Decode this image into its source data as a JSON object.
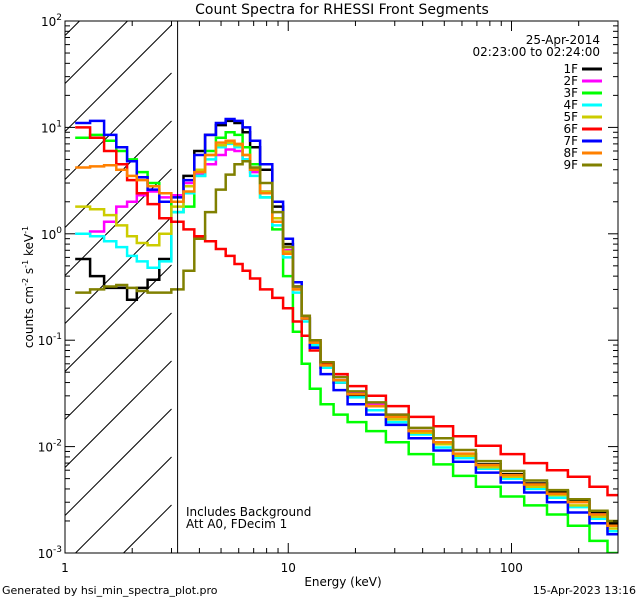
{
  "chart_data": {
    "type": "line",
    "title": "Count Spectra for RHESSI Front Segments",
    "date": "25-Apr-2014",
    "time_range": "02:23:00 to 02:24:00",
    "xlabel": "Energy (keV)",
    "ylabel": "counts cm-2 s-1 keV-1",
    "xscale": "log",
    "yscale": "log",
    "xlim": [
      1,
      300
    ],
    "ylim": [
      0.001,
      100
    ],
    "x_ticks": [
      {
        "value": 1,
        "label": "1"
      },
      {
        "value": 10,
        "label": "10"
      },
      {
        "value": 100,
        "label": "100"
      }
    ],
    "y_ticks": [
      {
        "value": 100,
        "mant": "10",
        "exp": "2"
      },
      {
        "value": 10,
        "mant": "10",
        "exp": "1"
      },
      {
        "value": 1,
        "mant": "10",
        "exp": "0"
      },
      {
        "value": 0.1,
        "mant": "10",
        "exp": "-1"
      },
      {
        "value": 0.01,
        "mant": "10",
        "exp": "-2"
      },
      {
        "value": 0.001,
        "mant": "10",
        "exp": "-3"
      }
    ],
    "shaded_region": {
      "from": 1,
      "to": 3,
      "note": "below-threshold energies hatched"
    },
    "annotations": [
      "Includes Background",
      "Att A0, FDecim 1"
    ],
    "series": [
      {
        "name": "1F",
        "color": "#000000",
        "energies": [
          1.2,
          1.4,
          1.6,
          1.8,
          2.0,
          2.2,
          2.5,
          2.8,
          3.2,
          3.6,
          4.0,
          4.5,
          5.0,
          5.5,
          6.0,
          6.5,
          7.0,
          8.0,
          9.0,
          10,
          11,
          12,
          13,
          15,
          17,
          20,
          25,
          30,
          40,
          50,
          60,
          80,
          100,
          130,
          160,
          200,
          250,
          290
        ],
        "values": [
          0.58,
          0.4,
          0.31,
          0.31,
          0.24,
          0.31,
          0.37,
          0.58,
          2.0,
          3.5,
          6.0,
          8.5,
          10.5,
          11.5,
          11.0,
          9.0,
          6.5,
          4.0,
          1.8,
          0.8,
          0.32,
          0.16,
          0.09,
          0.055,
          0.04,
          0.03,
          0.024,
          0.019,
          0.014,
          0.011,
          0.0085,
          0.0068,
          0.0055,
          0.0045,
          0.0038,
          0.0031,
          0.0024,
          0.0019
        ]
      },
      {
        "name": "2F",
        "color": "#ff00ff",
        "energies": [
          1.2,
          1.4,
          1.6,
          1.8,
          2.0,
          2.2,
          2.5,
          2.8,
          3.2,
          3.6,
          4.0,
          4.5,
          5.0,
          5.5,
          6.0,
          6.5,
          7.0,
          8.0,
          9.0,
          10,
          11,
          12,
          13,
          15,
          17,
          20,
          25,
          30,
          40,
          50,
          60,
          80,
          100,
          130,
          160,
          200,
          250,
          290
        ],
        "values": [
          1.0,
          1.05,
          1.3,
          1.8,
          2.0,
          2.3,
          2.5,
          2.2,
          2.3,
          3.0,
          3.6,
          4.5,
          5.5,
          6.2,
          6.0,
          5.0,
          3.8,
          2.5,
          1.4,
          0.7,
          0.32,
          0.17,
          0.1,
          0.06,
          0.045,
          0.032,
          0.025,
          0.02,
          0.014,
          0.011,
          0.0085,
          0.0066,
          0.0053,
          0.0043,
          0.0036,
          0.003,
          0.0023,
          0.0018
        ]
      },
      {
        "name": "3F",
        "color": "#00ff00",
        "energies": [
          1.2,
          1.4,
          1.6,
          1.8,
          2.0,
          2.2,
          2.5,
          2.8,
          3.2,
          3.6,
          4.0,
          4.5,
          5.0,
          5.5,
          6.0,
          6.5,
          7.0,
          8.0,
          9.0,
          10,
          11,
          12,
          13,
          15,
          17,
          20,
          25,
          30,
          40,
          50,
          60,
          80,
          100,
          130,
          160,
          200,
          250,
          290
        ],
        "values": [
          8.0,
          8.5,
          7.5,
          6.0,
          5.0,
          3.8,
          3.0,
          2.4,
          1.6,
          1.8,
          3.5,
          6.0,
          8.0,
          9.0,
          8.5,
          6.5,
          4.5,
          2.2,
          1.1,
          0.4,
          0.12,
          0.06,
          0.035,
          0.025,
          0.02,
          0.017,
          0.014,
          0.011,
          0.0085,
          0.0068,
          0.0053,
          0.0042,
          0.0034,
          0.0028,
          0.0023,
          0.0018,
          0.0013,
          0.001
        ]
      },
      {
        "name": "4F",
        "color": "#00ffff",
        "energies": [
          1.2,
          1.4,
          1.6,
          1.8,
          2.0,
          2.2,
          2.5,
          2.8,
          3.2,
          3.6,
          4.0,
          4.5,
          5.0,
          5.5,
          6.0,
          6.5,
          7.0,
          8.0,
          9.0,
          10,
          11,
          12,
          13,
          15,
          17,
          20,
          25,
          30,
          40,
          50,
          60,
          80,
          100,
          130,
          160,
          200,
          250,
          290
        ],
        "values": [
          1.0,
          0.95,
          0.85,
          0.75,
          0.62,
          0.55,
          0.48,
          0.55,
          1.6,
          2.4,
          3.5,
          5.0,
          6.5,
          7.0,
          6.5,
          5.0,
          3.5,
          2.2,
          1.2,
          0.6,
          0.28,
          0.15,
          0.09,
          0.055,
          0.04,
          0.029,
          0.022,
          0.017,
          0.013,
          0.0098,
          0.0078,
          0.0062,
          0.005,
          0.004,
          0.0033,
          0.0027,
          0.0021,
          0.0016
        ]
      },
      {
        "name": "5F",
        "color": "#cccc00",
        "energies": [
          1.2,
          1.4,
          1.6,
          1.8,
          2.0,
          2.2,
          2.5,
          2.8,
          3.2,
          3.6,
          4.0,
          4.5,
          5.0,
          5.5,
          6.0,
          6.5,
          7.0,
          8.0,
          9.0,
          10,
          11,
          12,
          13,
          15,
          17,
          20,
          25,
          30,
          40,
          50,
          60,
          80,
          100,
          130,
          160,
          200,
          250,
          290
        ],
        "values": [
          1.8,
          1.7,
          1.5,
          1.2,
          0.95,
          0.82,
          0.78,
          1.0,
          1.8,
          2.8,
          4.0,
          5.5,
          6.8,
          7.2,
          6.8,
          5.5,
          4.0,
          2.5,
          1.4,
          0.68,
          0.3,
          0.16,
          0.095,
          0.058,
          0.042,
          0.031,
          0.024,
          0.018,
          0.0135,
          0.0105,
          0.0082,
          0.0064,
          0.0052,
          0.0042,
          0.0035,
          0.0028,
          0.0022,
          0.0017
        ]
      },
      {
        "name": "6F",
        "color": "#ff0000",
        "energies": [
          1.2,
          1.4,
          1.6,
          1.8,
          2.0,
          2.2,
          2.5,
          2.8,
          3.2,
          3.6,
          4.0,
          4.5,
          5.0,
          5.5,
          6.0,
          6.5,
          7.0,
          8.0,
          9.0,
          10,
          11,
          12,
          13,
          15,
          17,
          20,
          25,
          30,
          40,
          50,
          60,
          80,
          100,
          130,
          160,
          200,
          250,
          290
        ],
        "values": [
          10.0,
          8.0,
          6.0,
          4.5,
          3.2,
          2.4,
          1.9,
          1.4,
          1.3,
          1.1,
          0.95,
          0.85,
          0.72,
          0.62,
          0.52,
          0.45,
          0.38,
          0.3,
          0.25,
          0.2,
          0.15,
          0.11,
          0.08,
          0.06,
          0.048,
          0.037,
          0.03,
          0.024,
          0.019,
          0.0155,
          0.0125,
          0.0102,
          0.0085,
          0.007,
          0.006,
          0.0052,
          0.0042,
          0.0035
        ]
      },
      {
        "name": "7F",
        "color": "#0000ff",
        "energies": [
          1.2,
          1.4,
          1.6,
          1.8,
          2.0,
          2.2,
          2.5,
          2.8,
          3.2,
          3.6,
          4.0,
          4.5,
          5.0,
          5.5,
          6.0,
          6.5,
          7.0,
          8.0,
          9.0,
          10,
          11,
          12,
          13,
          15,
          17,
          20,
          25,
          30,
          40,
          50,
          60,
          80,
          100,
          130,
          160,
          200,
          250,
          290
        ],
        "values": [
          11.0,
          11.5,
          8.5,
          6.5,
          4.8,
          3.4,
          2.6,
          2.0,
          2.2,
          3.2,
          5.5,
          8.5,
          11.0,
          12.0,
          11.5,
          10.0,
          7.5,
          4.5,
          2.0,
          0.9,
          0.35,
          0.16,
          0.085,
          0.048,
          0.034,
          0.025,
          0.02,
          0.016,
          0.012,
          0.0092,
          0.0072,
          0.0057,
          0.0046,
          0.0037,
          0.003,
          0.0024,
          0.0019,
          0.0015
        ]
      },
      {
        "name": "8F",
        "color": "#ff8000",
        "energies": [
          1.2,
          1.4,
          1.6,
          1.8,
          2.0,
          2.2,
          2.5,
          2.8,
          3.2,
          3.6,
          4.0,
          4.5,
          5.0,
          5.5,
          6.0,
          6.5,
          7.0,
          8.0,
          9.0,
          10,
          11,
          12,
          13,
          15,
          17,
          20,
          25,
          30,
          40,
          50,
          60,
          80,
          100,
          130,
          160,
          200,
          250,
          290
        ],
        "values": [
          4.2,
          4.3,
          4.4,
          4.0,
          3.5,
          3.2,
          2.8,
          2.4,
          2.0,
          2.5,
          3.8,
          5.5,
          7.2,
          7.5,
          7.0,
          5.5,
          4.0,
          2.4,
          1.3,
          0.65,
          0.3,
          0.16,
          0.095,
          0.058,
          0.042,
          0.031,
          0.024,
          0.019,
          0.014,
          0.011,
          0.0086,
          0.0067,
          0.0054,
          0.0044,
          0.0036,
          0.003,
          0.0023,
          0.0018
        ]
      },
      {
        "name": "9F",
        "color": "#808000",
        "energies": [
          1.2,
          1.4,
          1.6,
          1.8,
          2.0,
          2.2,
          2.5,
          2.8,
          3.2,
          3.6,
          4.0,
          4.5,
          5.0,
          5.5,
          6.0,
          6.5,
          7.0,
          8.0,
          9.0,
          10,
          11,
          12,
          13,
          15,
          17,
          20,
          25,
          30,
          40,
          50,
          60,
          80,
          100,
          130,
          160,
          200,
          250,
          290
        ],
        "values": [
          0.28,
          0.3,
          0.32,
          0.33,
          0.31,
          0.29,
          0.28,
          0.28,
          0.3,
          0.45,
          0.9,
          1.6,
          2.6,
          3.6,
          4.5,
          4.8,
          4.2,
          3.0,
          1.6,
          0.75,
          0.32,
          0.17,
          0.1,
          0.062,
          0.045,
          0.033,
          0.026,
          0.02,
          0.015,
          0.012,
          0.0093,
          0.0073,
          0.0059,
          0.0048,
          0.0039,
          0.0032,
          0.0025,
          0.002
        ]
      }
    ]
  },
  "footer": {
    "generator": "Generated by hsi_min_spectra_plot.pro",
    "date": "15-Apr-2023 13:16"
  }
}
